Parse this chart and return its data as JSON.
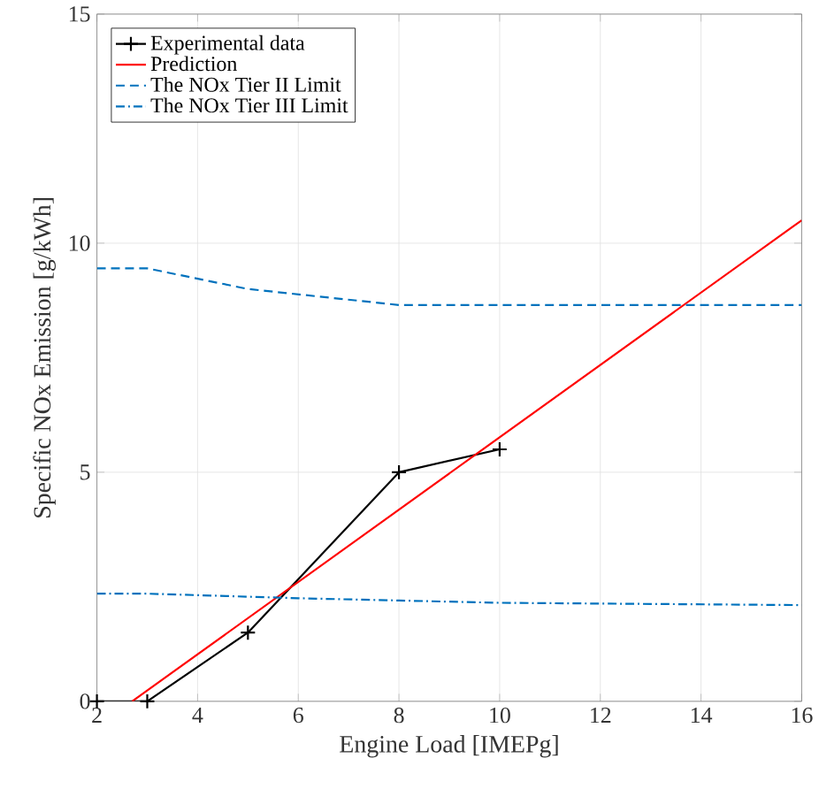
{
  "chart_data": {
    "type": "line",
    "xlabel": "Engine Load [IMEPg]",
    "ylabel": "Specific NOx Emission [g/kWh]",
    "xlim": [
      2,
      16
    ],
    "ylim": [
      0,
      15
    ],
    "xticks": [
      2,
      4,
      6,
      8,
      10,
      12,
      14,
      16
    ],
    "yticks": [
      0,
      5,
      10,
      15
    ],
    "grid": true,
    "legend": "top left",
    "series": [
      {
        "name": "Experimental data",
        "color": "#000000",
        "marker": "cross",
        "line_style": "solid",
        "x": [
          2,
          3,
          5,
          8,
          10
        ],
        "values": [
          0,
          0,
          1.5,
          5,
          5.5
        ]
      },
      {
        "name": "Prediction",
        "color": "#ff0000",
        "line_style": "solid",
        "x": [
          2.7,
          16
        ],
        "values": [
          0,
          10.5
        ]
      },
      {
        "name": "The NOx Tier II Limit",
        "color": "#0072bd",
        "line_style": "dashed",
        "x": [
          2,
          3,
          5,
          8,
          10,
          16
        ],
        "values": [
          9.45,
          9.45,
          9.0,
          8.65,
          8.65,
          8.65
        ]
      },
      {
        "name": "The NOx Tier III Limit",
        "color": "#0072bd",
        "line_style": "dashdot",
        "x": [
          2,
          3,
          6,
          8,
          10,
          16
        ],
        "values": [
          2.35,
          2.35,
          2.25,
          2.2,
          2.15,
          2.1
        ]
      }
    ]
  }
}
